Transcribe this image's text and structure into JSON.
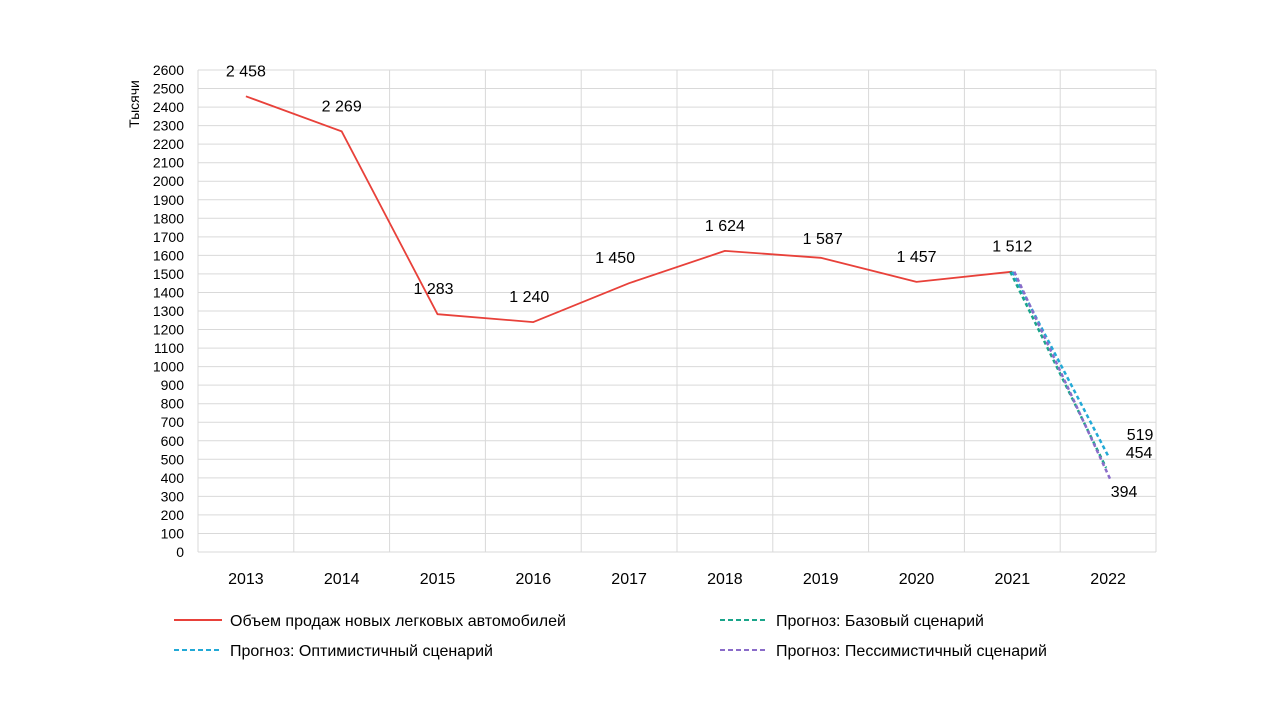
{
  "chart_data": {
    "type": "line",
    "title": "",
    "xlabel": "",
    "ylabel": "Тысячи",
    "ylim": [
      0,
      2600
    ],
    "y_tick_step": 100,
    "grid": true,
    "legend_position": "bottom",
    "categories": [
      "2013",
      "2014",
      "2015",
      "2016",
      "2017",
      "2018",
      "2019",
      "2020",
      "2021",
      "2022"
    ],
    "series": [
      {
        "name": "Объем продаж новых легковых автомобилей",
        "color": "#e8413a",
        "style": "solid",
        "values": [
          2458,
          2269,
          1283,
          1240,
          1450,
          1624,
          1587,
          1457,
          1512,
          null
        ],
        "labels": [
          "2 458",
          "2 269",
          "1 283",
          "1 240",
          "1 450",
          "1 624",
          "1 587",
          "1 457",
          "1 512",
          ""
        ]
      },
      {
        "name": "Прогноз: Базовый сценарий",
        "color": "#1aa58a",
        "style": "dashed",
        "values": [
          null,
          null,
          null,
          null,
          null,
          null,
          null,
          null,
          1512,
          454
        ],
        "labels": [
          "",
          "",
          "",
          "",
          "",
          "",
          "",
          "",
          "",
          "454"
        ]
      },
      {
        "name": "Прогноз: Оптимистичный сценарий",
        "color": "#22a9d6",
        "style": "dashed",
        "values": [
          null,
          null,
          null,
          null,
          null,
          null,
          null,
          null,
          1512,
          519
        ],
        "labels": [
          "",
          "",
          "",
          "",
          "",
          "",
          "",
          "",
          "",
          "519"
        ]
      },
      {
        "name": "Прогноз: Пессимистичный сценарий",
        "color": "#8a6cc9",
        "style": "dashed",
        "values": [
          null,
          null,
          null,
          null,
          null,
          null,
          null,
          null,
          1512,
          394
        ],
        "labels": [
          "",
          "",
          "",
          "",
          "",
          "",
          "",
          "",
          "",
          "394"
        ]
      }
    ]
  }
}
